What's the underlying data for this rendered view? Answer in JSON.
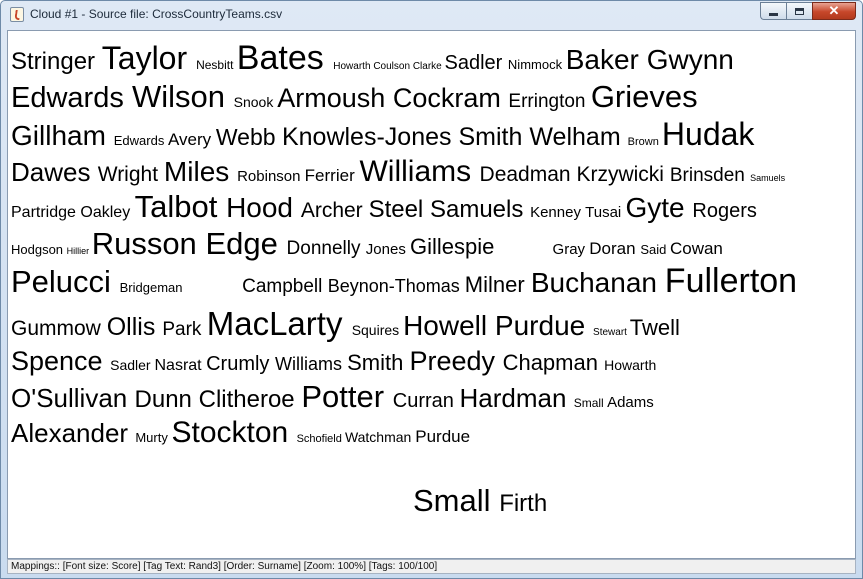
{
  "window": {
    "title": "Cloud #1 - Source file: CrossCountryTeams.csv",
    "icon": "java-cup-icon",
    "controls": {
      "minimize": "minimize-icon",
      "maximize": "maximize-icon",
      "close": "close-icon",
      "close_glyph": "✕"
    }
  },
  "cloud": {
    "lines": [
      [
        {
          "text": "Stringer",
          "size": 24
        },
        {
          "text": "Taylor",
          "size": 32
        },
        {
          "text": "Nesbitt",
          "size": 12
        },
        {
          "text": "Bates",
          "size": 34
        },
        {
          "text": "Howarth",
          "size": 10
        },
        {
          "text": "Coulson",
          "size": 10
        },
        {
          "text": "Clarke",
          "size": 10
        },
        {
          "text": "Sadler",
          "size": 20
        },
        {
          "text": "Nimmock",
          "size": 13
        },
        {
          "text": "Baker",
          "size": 28
        },
        {
          "text": "Gwynn",
          "size": 28
        }
      ],
      [
        {
          "text": "Edwards",
          "size": 29
        },
        {
          "text": "Wilson",
          "size": 31
        },
        {
          "text": "Snook",
          "size": 14
        },
        {
          "text": "Armoush",
          "size": 27
        },
        {
          "text": "Cockram",
          "size": 27
        },
        {
          "text": "Errington",
          "size": 19
        },
        {
          "text": "Grieves",
          "size": 31
        }
      ],
      [
        {
          "text": "Gillham",
          "size": 28
        },
        {
          "text": "Edwards",
          "size": 13
        },
        {
          "text": "Avery",
          "size": 17
        },
        {
          "text": "Webb",
          "size": 23
        },
        {
          "text": "Knowles-Jones",
          "size": 25
        },
        {
          "text": "Smith",
          "size": 25
        },
        {
          "text": "Welham",
          "size": 25
        },
        {
          "text": "Brown",
          "size": 11
        },
        {
          "text": "Hudak",
          "size": 32
        }
      ],
      [
        {
          "text": "Dawes",
          "size": 26
        },
        {
          "text": "Wright",
          "size": 21
        },
        {
          "text": "Miles",
          "size": 28
        },
        {
          "text": "Robinson",
          "size": 15
        },
        {
          "text": "Ferrier",
          "size": 17
        },
        {
          "text": "Williams",
          "size": 30
        },
        {
          "text": "Deadman",
          "size": 21
        },
        {
          "text": "Krzywicki",
          "size": 21
        },
        {
          "text": "Brinsden",
          "size": 19
        },
        {
          "text": "Samuels",
          "size": 9
        }
      ],
      [
        {
          "text": "Partridge",
          "size": 16
        },
        {
          "text": "Oakley",
          "size": 16
        },
        {
          "text": "Talbot",
          "size": 31
        },
        {
          "text": "Hood",
          "size": 28
        },
        {
          "text": "Archer",
          "size": 21
        },
        {
          "text": "Steel",
          "size": 24
        },
        {
          "text": "Samuels",
          "size": 24
        },
        {
          "text": "Kenney",
          "size": 15
        },
        {
          "text": "Tusai",
          "size": 15
        },
        {
          "text": "Gyte",
          "size": 28
        },
        {
          "text": "Rogers",
          "size": 20
        }
      ],
      [
        {
          "text": "Hodgson",
          "size": 13
        },
        {
          "text": "Hillier",
          "size": 9
        },
        {
          "text": "Russon",
          "size": 31
        },
        {
          "text": "Edge",
          "size": 31
        },
        {
          "text": "Donnelly",
          "size": 19
        },
        {
          "text": "Jones",
          "size": 15
        },
        {
          "text": "Gillespie",
          "size": 22
        },
        {
          "text": "Gray",
          "size": 15,
          "gap": 52
        },
        {
          "text": "Doran",
          "size": 17
        },
        {
          "text": "Said",
          "size": 13
        },
        {
          "text": "Cowan",
          "size": 17
        }
      ],
      [
        {
          "text": "Pelucci",
          "size": 31
        },
        {
          "text": "Bridgeman",
          "size": 13
        },
        {
          "text": "Campbell",
          "size": 19,
          "gap": 56
        },
        {
          "text": "Beynon-Thomas",
          "size": 18
        },
        {
          "text": "Milner",
          "size": 22
        },
        {
          "text": "Buchanan",
          "size": 28
        },
        {
          "text": "Fullerton",
          "size": 34
        }
      ],
      [
        {
          "text": "Gummow",
          "size": 21
        },
        {
          "text": "Ollis",
          "size": 25
        },
        {
          "text": "Park",
          "size": 19
        },
        {
          "text": "MacLarty",
          "size": 33
        },
        {
          "text": "Squires",
          "size": 14
        },
        {
          "text": "Howell",
          "size": 28
        },
        {
          "text": "Purdue",
          "size": 28
        },
        {
          "text": "Stewart",
          "size": 10
        },
        {
          "text": "Twell",
          "size": 22
        }
      ],
      [
        {
          "text": "Spence",
          "size": 27
        },
        {
          "text": "Sadler",
          "size": 14
        },
        {
          "text": "Nasrat",
          "size": 16
        },
        {
          "text": "Crumly",
          "size": 20
        },
        {
          "text": "Williams",
          "size": 18
        },
        {
          "text": "Smith",
          "size": 22
        },
        {
          "text": "Preedy",
          "size": 27
        },
        {
          "text": "Chapman",
          "size": 22
        },
        {
          "text": "Howarth",
          "size": 14
        }
      ],
      [
        {
          "text": "O'Sullivan",
          "size": 26
        },
        {
          "text": "Dunn",
          "size": 24
        },
        {
          "text": "Clitheroe",
          "size": 24
        },
        {
          "text": "Potter",
          "size": 31
        },
        {
          "text": "Curran",
          "size": 20
        },
        {
          "text": "Hardman",
          "size": 26
        },
        {
          "text": "Small",
          "size": 12
        },
        {
          "text": "Adams",
          "size": 15
        }
      ],
      [
        {
          "text": "Alexander",
          "size": 26
        },
        {
          "text": "Murty",
          "size": 13
        },
        {
          "text": "Stockton",
          "size": 30
        },
        {
          "text": "Schofield",
          "size": 11
        },
        {
          "text": "Watchman",
          "size": 14
        },
        {
          "text": "Purdue",
          "size": 17
        }
      ],
      [
        {
          "text": "Small",
          "size": 31,
          "gap": 402
        },
        {
          "text": "Firth",
          "size": 24
        }
      ]
    ]
  },
  "statusbar": {
    "text": "Mappings:: [Font size: Score]  [Tag Text: Rand3]  [Order: Surname]  [Zoom: 100%]  [Tags: 100/100]"
  }
}
